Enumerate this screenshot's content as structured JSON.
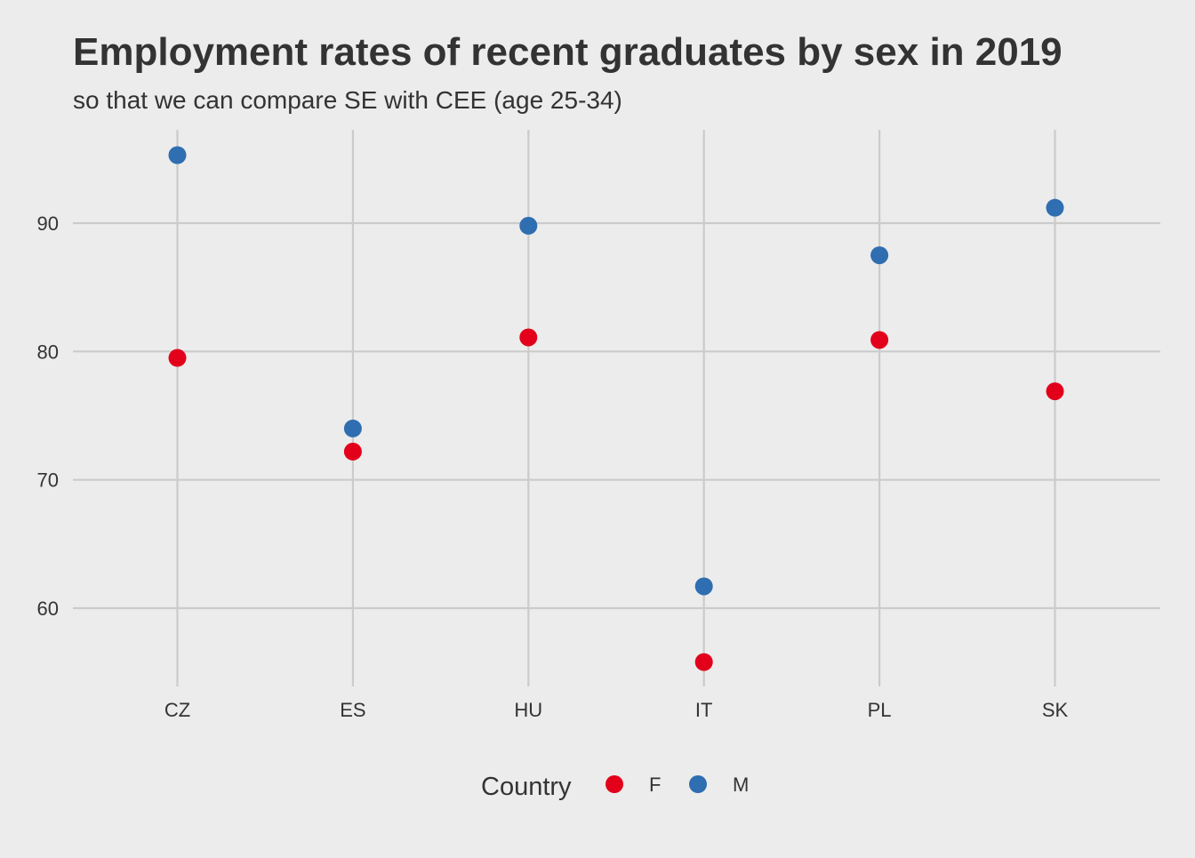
{
  "chart_data": {
    "type": "scatter",
    "title": "Employment rates of recent graduates by sex in 2019",
    "subtitle": "so that we can compare SE with CEE (age 25-34)",
    "xlabel": "",
    "ylabel": "",
    "categories": [
      "CZ",
      "ES",
      "HU",
      "IT",
      "PL",
      "SK"
    ],
    "ylim": [
      54,
      97.3
    ],
    "yticks": [
      60,
      70,
      80,
      90
    ],
    "grid": true,
    "legend": {
      "title": "Country",
      "position": "bottom"
    },
    "series": [
      {
        "name": "F",
        "color": "#e3001b",
        "values": [
          79.5,
          72.2,
          81.1,
          55.8,
          80.9,
          76.9
        ]
      },
      {
        "name": "M",
        "color": "#2f6eb0",
        "values": [
          95.3,
          74.0,
          89.8,
          61.7,
          87.5,
          91.2
        ]
      }
    ]
  }
}
